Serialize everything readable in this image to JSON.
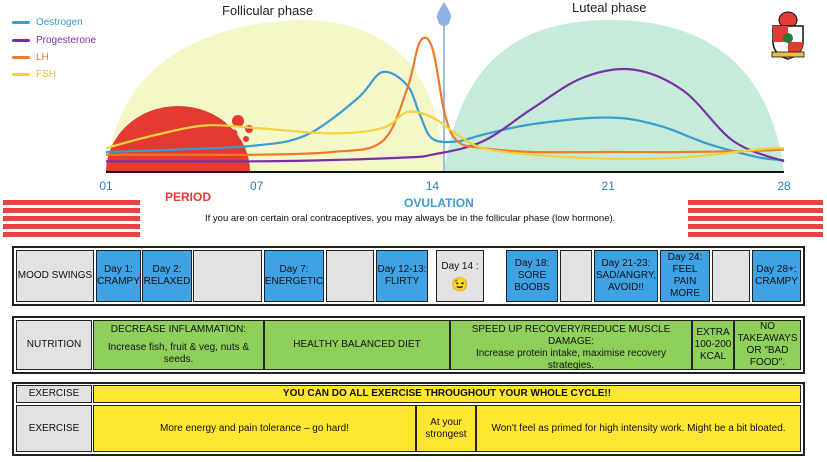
{
  "chart_data": {
    "type": "line",
    "title": "",
    "xlabel": "",
    "ylabel": "",
    "x_ticks": [
      "01",
      "07",
      "14",
      "21",
      "28"
    ],
    "phases": [
      "Follicular phase",
      "Luteal phase"
    ],
    "series": [
      {
        "name": "Oestrogen",
        "color": "#3a9bd5",
        "x": [
          1,
          4,
          7,
          9,
          11,
          12,
          13,
          13.5,
          14,
          15,
          16,
          18,
          21,
          23,
          25,
          27,
          28
        ],
        "y": [
          0.12,
          0.14,
          0.17,
          0.25,
          0.52,
          0.72,
          0.62,
          0.4,
          0.22,
          0.2,
          0.25,
          0.33,
          0.38,
          0.32,
          0.18,
          0.08,
          0.06
        ]
      },
      {
        "name": "Progesterone",
        "color": "#7b2fa6",
        "x": [
          1,
          4,
          7,
          10,
          13,
          14,
          16,
          18,
          20,
          22,
          24,
          26,
          28
        ],
        "y": [
          0.05,
          0.05,
          0.05,
          0.06,
          0.08,
          0.1,
          0.2,
          0.45,
          0.68,
          0.74,
          0.58,
          0.2,
          0.05
        ]
      },
      {
        "name": "LH",
        "color": "#ee7a2b",
        "x": [
          1,
          4,
          7,
          10,
          12,
          13,
          13.5,
          14,
          14.5,
          15,
          16,
          18,
          21,
          24,
          27,
          28
        ],
        "y": [
          0.1,
          0.1,
          0.1,
          0.12,
          0.2,
          0.6,
          0.95,
          0.9,
          0.4,
          0.2,
          0.15,
          0.12,
          0.12,
          0.12,
          0.13,
          0.14
        ]
      },
      {
        "name": "FSH",
        "color": "#f3d23a",
        "x": [
          1,
          3,
          5,
          7,
          10,
          12,
          13,
          14,
          15,
          16,
          18,
          21,
          24,
          27,
          28
        ],
        "y": [
          0.15,
          0.25,
          0.32,
          0.3,
          0.26,
          0.3,
          0.42,
          0.38,
          0.25,
          0.15,
          0.1,
          0.07,
          0.08,
          0.14,
          0.15
        ]
      }
    ]
  },
  "legend": [
    {
      "label": "Oestrogen",
      "color": "#3a9bd5"
    },
    {
      "label": "Progesterone",
      "color": "#7b2fa6"
    },
    {
      "label": "LH",
      "color": "#ee7a2b"
    },
    {
      "label": "FSH",
      "color": "#f3d23a"
    }
  ],
  "colors": {
    "follicular": "#f5f7c8",
    "luteal": "#c6ecd9",
    "period": "#e53a31",
    "stripe": "#e8433f",
    "ovulation": "#9bbde6"
  },
  "labels": {
    "follicular_phase": "Follicular phase",
    "luteal_phase": "Luteal phase",
    "period": "PERIOD",
    "ovulation": "OVULATION",
    "note": "If you are on certain oral contraceptives, you may always be in the follicular phase (low hormone)."
  },
  "mood": {
    "label": "MOOD SWINGS",
    "cells": [
      "Day 1: CRAMPY",
      "Day 2: RELAXED",
      "",
      "Day 7: ENERGETIC",
      "",
      "Day 12-13: FLIRTY",
      "Day 14 :",
      "Day 18: SORE BOOBS",
      "",
      "Day 21-23: SAD/ANGRY, AVOID!!",
      "Day 24: FEEL PAIN MORE",
      "",
      "Day 28+: CRAMPY"
    ],
    "emoji": "😉"
  },
  "nutrition": {
    "label": "NUTRITION",
    "c1_title": "DECREASE INFLAMMATION:",
    "c1_body": "Increase fish, fruit & veg, nuts & seeds.",
    "c2": "HEALTHY BALANCED DIET",
    "c3_title": "SPEED UP RECOVERY/REDUCE MUSCLE DAMAGE:",
    "c3_body": "Increase protein intake, maximise recovery strategies.",
    "c4": "EXTRA 100-200 KCAL",
    "c5": "NO TAKEAWAYS OR \"BAD FOOD\"."
  },
  "exercise": {
    "label1": "EXERCISE",
    "banner": "YOU CAN DO ALL EXERCISE THROUGHOUT YOUR WHOLE CYCLE!!",
    "label2": "EXERCISE",
    "c1": "More energy and pain tolerance – go hard!",
    "c2": "At your strongest",
    "c3": "Won't feel as primed for high intensity work. Might be a bit bloated."
  }
}
